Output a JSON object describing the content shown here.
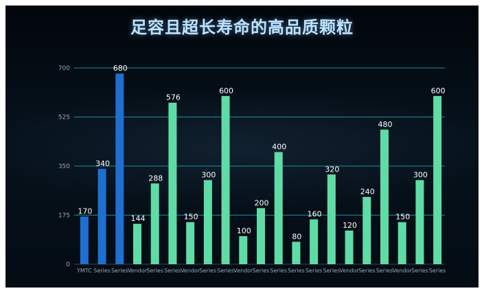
{
  "title": "足容且超长寿命的高品质颗粒",
  "colors": {
    "highlight": "#1f6fd1",
    "normal": "#5fdca6",
    "grid": "#1e8fa0",
    "label": "#ffffff",
    "tick": "#9aa7b4"
  },
  "chart_data": {
    "type": "bar",
    "title": "足容且超长寿命的高品质颗粒",
    "xlabel": "",
    "ylabel": "",
    "ylim": [
      0,
      700
    ],
    "yticks": [
      0,
      175,
      350,
      525,
      700
    ],
    "grid": true,
    "categories": [
      "YMTC",
      "Series",
      "Series",
      "Vendor",
      "Series",
      "Series",
      "Vendor",
      "Series",
      "Series",
      "Vendor",
      "Series",
      "Series",
      "Series",
      "Series",
      "Series",
      "Vendor",
      "Series",
      "Series",
      "Vendor",
      "Series",
      "Series"
    ],
    "values": [
      170,
      340,
      680,
      144,
      288,
      576,
      150,
      300,
      600,
      100,
      200,
      400,
      80,
      160,
      320,
      120,
      240,
      480,
      150,
      300,
      600
    ],
    "highlight_count": 3
  }
}
